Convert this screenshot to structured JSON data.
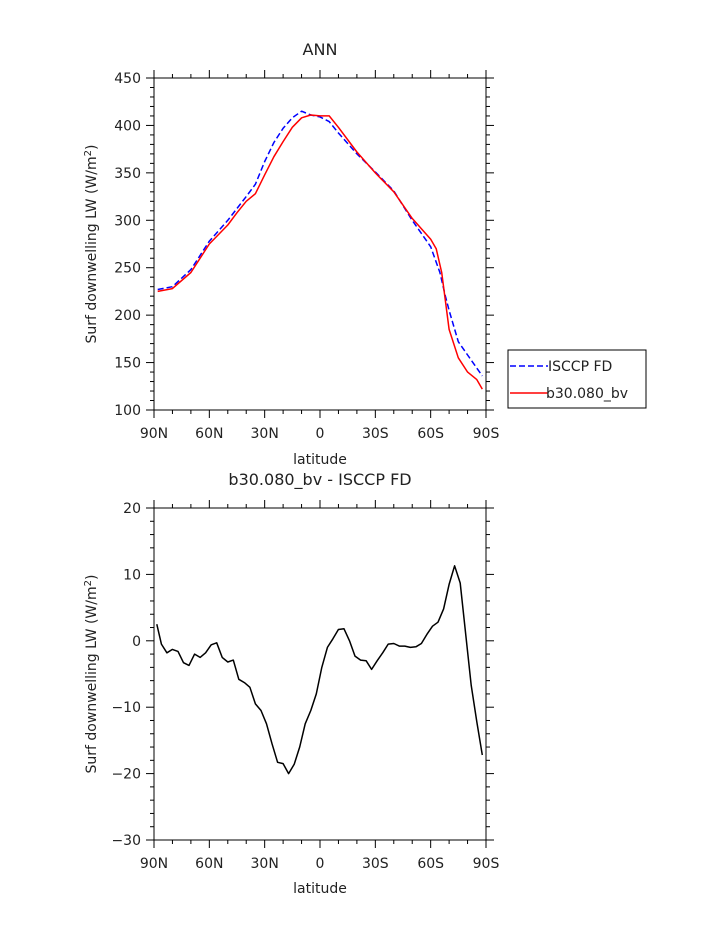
{
  "chart_data": [
    {
      "type": "line",
      "title": "ANN",
      "xlabel": "latitude",
      "ylabel": "Surf downwelling LW (W/m²)",
      "ylabel_parts": {
        "base": "Surf downwelling LW (W/m",
        "sup": "2",
        "tail": ")"
      },
      "xlim": [
        90,
        -90
      ],
      "ylim": [
        100,
        450
      ],
      "x_ticks": [
        90,
        60,
        30,
        0,
        -30,
        -60,
        -90
      ],
      "x_tick_labels": [
        "90N",
        "60N",
        "30N",
        "0",
        "30S",
        "60S",
        "90S"
      ],
      "y_ticks": [
        100,
        150,
        200,
        250,
        300,
        350,
        400,
        450
      ],
      "y_tick_labels": [
        "100",
        "150",
        "200",
        "250",
        "300",
        "350",
        "400",
        "450"
      ],
      "legend_placement": "outside-right",
      "series": [
        {
          "name": "ISCCP FD",
          "color": "#0000ff",
          "dash": "dashed",
          "x": [
            88,
            80,
            70,
            60,
            50,
            40,
            35,
            30,
            25,
            20,
            15,
            10,
            5,
            0,
            -5,
            -10,
            -20,
            -30,
            -40,
            -50,
            -60,
            -65,
            -68,
            -70,
            -75,
            -80,
            -88
          ],
          "y": [
            227,
            230,
            248,
            278,
            300,
            325,
            338,
            362,
            382,
            397,
            408,
            415,
            411,
            409,
            404,
            392,
            370,
            351,
            331,
            300,
            272,
            245,
            220,
            205,
            172,
            158,
            136
          ]
        },
        {
          "name": "b30.080_bv",
          "color": "#ff0000",
          "dash": "solid",
          "x": [
            88,
            80,
            70,
            60,
            50,
            45,
            40,
            35,
            30,
            25,
            20,
            15,
            10,
            5,
            0,
            -5,
            -10,
            -20,
            -30,
            -40,
            -50,
            -60,
            -63,
            -66,
            -68,
            -70,
            -75,
            -80,
            -85,
            -88
          ],
          "y": [
            225,
            228,
            245,
            275,
            295,
            308,
            320,
            328,
            348,
            367,
            383,
            398,
            408,
            411,
            410,
            410,
            398,
            372,
            350,
            330,
            302,
            280,
            270,
            245,
            215,
            185,
            155,
            140,
            132,
            122
          ]
        }
      ]
    },
    {
      "type": "line",
      "title": "b30.080_bv - ISCCP FD",
      "xlabel": "latitude",
      "ylabel": "Surf downwelling LW (W/m²)",
      "ylabel_parts": {
        "base": "Surf downwelling LW (W/m",
        "sup": "2",
        "tail": ")"
      },
      "xlim": [
        90,
        -90
      ],
      "ylim": [
        -30,
        20
      ],
      "x_ticks": [
        90,
        60,
        30,
        0,
        -30,
        -60,
        -90
      ],
      "x_tick_labels": [
        "90N",
        "60N",
        "30N",
        "0",
        "30S",
        "60S",
        "90S"
      ],
      "y_ticks": [
        -30,
        -20,
        -10,
        0,
        10,
        20
      ],
      "y_tick_labels": [
        "−30",
        "−20",
        "−10",
        "0",
        "10",
        "20"
      ],
      "series": [
        {
          "color": "#000000",
          "dash": "solid",
          "x": [
            88.5,
            86,
            83,
            80,
            77,
            74,
            71,
            68,
            65,
            62,
            59,
            56,
            53,
            50,
            47,
            44,
            41,
            38,
            35,
            32,
            29,
            26,
            23,
            20,
            17,
            14,
            11,
            8,
            5,
            2,
            -1,
            -4,
            -7,
            -10,
            -13,
            -16,
            -19,
            -22,
            -25,
            -28,
            -31,
            -34,
            -37,
            -40,
            -43,
            -46,
            -49,
            -52,
            -55,
            -58,
            -61,
            -64,
            -67,
            -70,
            -73,
            -76,
            -79,
            -82,
            -85,
            -88
          ],
          "y": [
            2.5,
            -0.5,
            -1.8,
            -1.3,
            -1.6,
            -3.3,
            -3.7,
            -2.0,
            -2.5,
            -1.8,
            -0.6,
            -0.3,
            -2.5,
            -3.2,
            -2.9,
            -5.8,
            -6.3,
            -7.0,
            -9.5,
            -10.5,
            -12.5,
            -15.5,
            -18.3,
            -18.5,
            -20.0,
            -18.6,
            -16.0,
            -12.5,
            -10.5,
            -8.0,
            -4.0,
            -1.0,
            0.3,
            1.7,
            1.8,
            0.0,
            -2.3,
            -2.9,
            -3.0,
            -4.3,
            -3.0,
            -1.8,
            -0.5,
            -0.4,
            -0.8,
            -0.8,
            -1.0,
            -0.9,
            -0.4,
            1.0,
            2.2,
            2.8,
            4.8,
            8.5,
            11.3,
            8.7,
            1.0,
            -6.7,
            -12.2,
            -17.2
          ]
        }
      ]
    }
  ]
}
